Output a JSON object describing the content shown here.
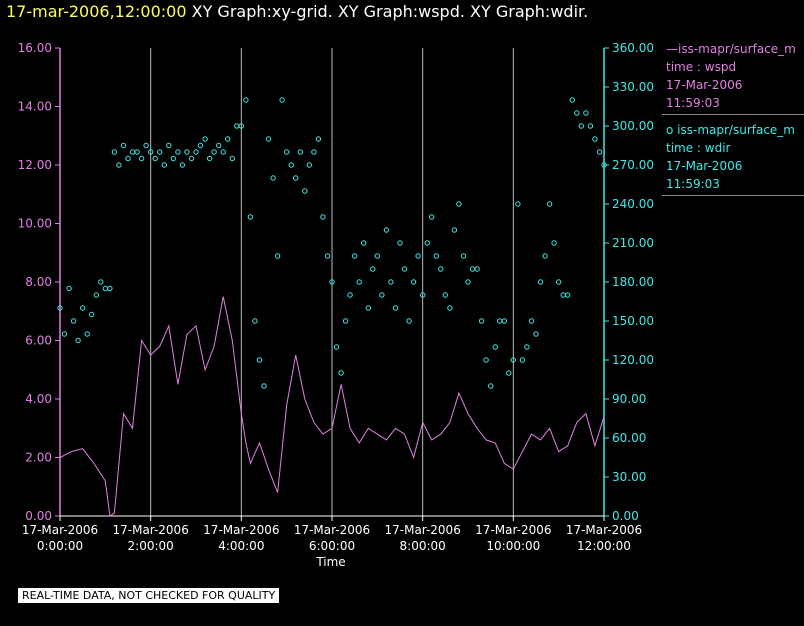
{
  "header": {
    "timestamp": "17-mar-2006,12:00:00",
    "graphs": "XY Graph:xy-grid.  XY Graph:wspd.  XY Graph:wdir."
  },
  "legend": {
    "wspd": {
      "source": "—iss-mapr/surface_m",
      "time": "time : wspd",
      "date": "17-Mar-2006",
      "clock": "11:59:03",
      "color": "#e080e0"
    },
    "wdir": {
      "source": "o  iss-mapr/surface_m",
      "time": "time : wdir",
      "date": "17-Mar-2006",
      "clock": "11:59:03",
      "color": "#40e8e8"
    }
  },
  "footer": {
    "note": "REAL-TIME DATA, NOT CHECKED FOR QUALITY"
  },
  "chart_data": {
    "type": "line",
    "xlabel": "Time",
    "x_ticks": [
      {
        "hour": 0,
        "date": "17-Mar-2006",
        "time": "0:00:00"
      },
      {
        "hour": 2,
        "date": "17-Mar-2006",
        "time": "2:00:00"
      },
      {
        "hour": 4,
        "date": "17-Mar-2006",
        "time": "4:00:00"
      },
      {
        "hour": 6,
        "date": "17-Mar-2006",
        "time": "6:00:00"
      },
      {
        "hour": 8,
        "date": "17-Mar-2006",
        "time": "8:00:00"
      },
      {
        "hour": 10,
        "date": "17-Mar-2006",
        "time": "10:00:00"
      },
      {
        "hour": 12,
        "date": "17-Mar-2006",
        "time": "12:00:00"
      }
    ],
    "xlim": [
      0,
      12
    ],
    "y_left": {
      "ticks": [
        "0.00",
        "2.00",
        "4.00",
        "6.00",
        "8.00",
        "10.00",
        "12.00",
        "14.00",
        "16.00"
      ],
      "ylim": [
        0,
        16
      ],
      "color": "#e080e0"
    },
    "y_right": {
      "ticks": [
        "0.00",
        "30.00",
        "60.00",
        "90.00",
        "120.00",
        "150.00",
        "180.00",
        "210.00",
        "240.00",
        "270.00",
        "300.00",
        "330.00",
        "360.00"
      ],
      "ylim": [
        0,
        360
      ],
      "color": "#40e8e8"
    },
    "grid": "vertical",
    "series": [
      {
        "name": "wspd",
        "axis": "left",
        "style": "line",
        "x": [
          0.0,
          0.25,
          0.5,
          0.75,
          1.0,
          1.1,
          1.2,
          1.4,
          1.6,
          1.8,
          2.0,
          2.2,
          2.4,
          2.6,
          2.8,
          3.0,
          3.2,
          3.4,
          3.6,
          3.8,
          4.0,
          4.1,
          4.2,
          4.4,
          4.6,
          4.8,
          5.0,
          5.2,
          5.4,
          5.6,
          5.8,
          6.0,
          6.2,
          6.4,
          6.6,
          6.8,
          7.0,
          7.2,
          7.4,
          7.6,
          7.8,
          8.0,
          8.2,
          8.4,
          8.6,
          8.8,
          9.0,
          9.2,
          9.4,
          9.6,
          9.8,
          10.0,
          10.2,
          10.4,
          10.6,
          10.8,
          11.0,
          11.2,
          11.4,
          11.6,
          11.8,
          12.0
        ],
        "values": [
          2.0,
          2.2,
          2.3,
          1.8,
          1.2,
          0.0,
          0.1,
          3.5,
          3.0,
          6.0,
          5.5,
          5.8,
          6.5,
          4.5,
          6.2,
          6.5,
          5.0,
          5.8,
          7.5,
          6.0,
          3.5,
          2.5,
          1.8,
          2.5,
          1.6,
          0.8,
          3.8,
          5.5,
          4.0,
          3.2,
          2.8,
          3.0,
          4.5,
          3.0,
          2.5,
          3.0,
          2.8,
          2.6,
          3.0,
          2.8,
          2.0,
          3.2,
          2.6,
          2.8,
          3.2,
          4.2,
          3.5,
          3.0,
          2.6,
          2.5,
          1.8,
          1.6,
          2.2,
          2.8,
          2.6,
          3.0,
          2.2,
          2.4,
          3.2,
          3.5,
          2.4,
          3.4
        ]
      },
      {
        "name": "wdir",
        "axis": "right",
        "style": "circles",
        "x": [
          0.0,
          0.1,
          0.2,
          0.3,
          0.4,
          0.5,
          0.6,
          0.7,
          0.8,
          0.9,
          1.0,
          1.1,
          1.2,
          1.3,
          1.4,
          1.5,
          1.6,
          1.7,
          1.8,
          1.9,
          2.0,
          2.1,
          2.2,
          2.3,
          2.4,
          2.5,
          2.6,
          2.7,
          2.8,
          2.9,
          3.0,
          3.1,
          3.2,
          3.3,
          3.4,
          3.5,
          3.6,
          3.7,
          3.8,
          3.9,
          4.0,
          4.1,
          4.2,
          4.3,
          4.4,
          4.5,
          4.6,
          4.7,
          4.8,
          4.9,
          5.0,
          5.1,
          5.2,
          5.3,
          5.4,
          5.5,
          5.6,
          5.7,
          5.8,
          5.9,
          6.0,
          6.1,
          6.2,
          6.3,
          6.4,
          6.5,
          6.6,
          6.7,
          6.8,
          6.9,
          7.0,
          7.1,
          7.2,
          7.3,
          7.4,
          7.5,
          7.6,
          7.7,
          7.8,
          7.9,
          8.0,
          8.1,
          8.2,
          8.3,
          8.4,
          8.5,
          8.6,
          8.7,
          8.8,
          8.9,
          9.0,
          9.1,
          9.2,
          9.3,
          9.4,
          9.5,
          9.6,
          9.7,
          9.8,
          9.9,
          10.0,
          10.1,
          10.2,
          10.3,
          10.4,
          10.5,
          10.6,
          10.7,
          10.8,
          10.9,
          11.0,
          11.1,
          11.2,
          11.3,
          11.4,
          11.5,
          11.6,
          11.7,
          11.8,
          11.9,
          12.0
        ],
        "values": [
          160,
          140,
          175,
          150,
          135,
          160,
          140,
          155,
          170,
          180,
          175,
          175,
          280,
          270,
          285,
          275,
          280,
          280,
          275,
          285,
          280,
          275,
          280,
          270,
          285,
          275,
          280,
          270,
          280,
          275,
          280,
          285,
          290,
          275,
          280,
          285,
          280,
          290,
          275,
          300,
          300,
          320,
          230,
          150,
          120,
          100,
          290,
          260,
          200,
          320,
          280,
          270,
          260,
          280,
          250,
          270,
          280,
          290,
          230,
          200,
          180,
          130,
          110,
          150,
          170,
          200,
          180,
          210,
          160,
          190,
          200,
          170,
          220,
          180,
          160,
          210,
          190,
          150,
          180,
          200,
          170,
          210,
          230,
          200,
          190,
          170,
          160,
          220,
          240,
          200,
          180,
          190,
          190,
          150,
          120,
          100,
          130,
          150,
          150,
          110,
          120,
          240,
          120,
          130,
          150,
          140,
          180,
          200,
          240,
          210,
          180,
          170,
          170,
          320,
          310,
          300,
          310,
          300,
          290,
          280,
          270
        ]
      }
    ]
  }
}
